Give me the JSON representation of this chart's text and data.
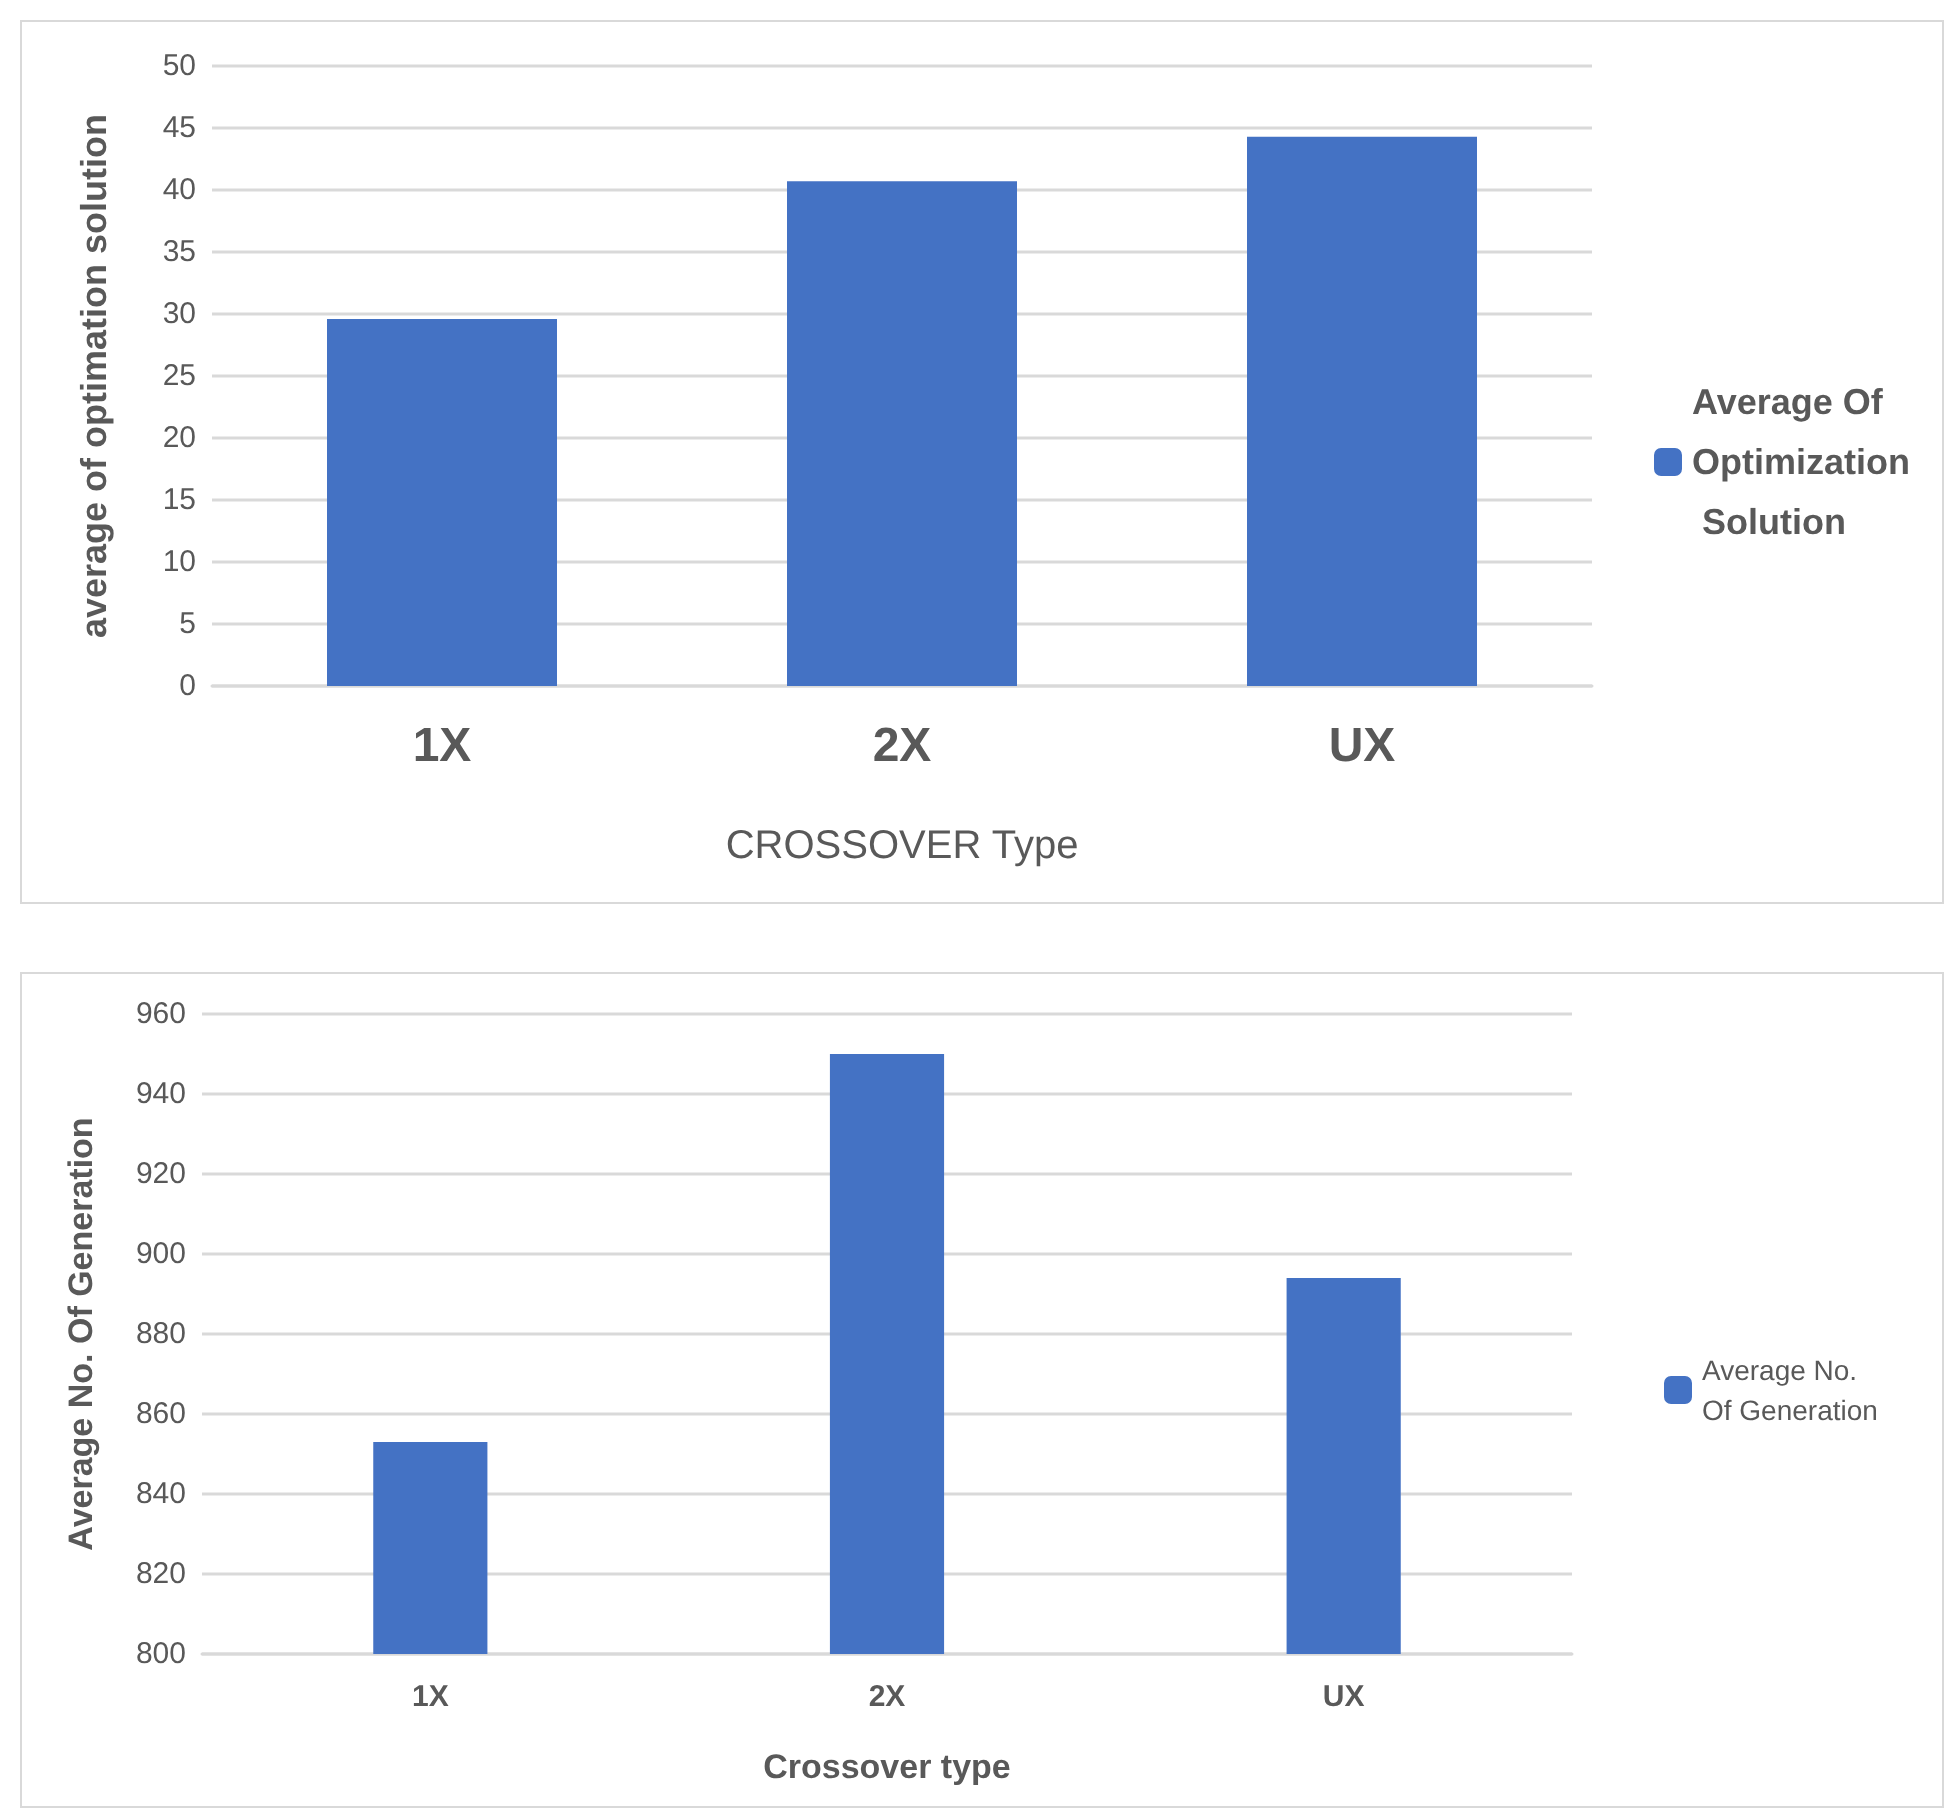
{
  "chart_data": [
    {
      "type": "bar",
      "xlabel": "CROSSOVER Type",
      "ylabel": "average of optimation solution",
      "categories": [
        "1X",
        "2X",
        "UX"
      ],
      "series": [
        {
          "name": "Average Of Optimization Solution",
          "color": "#4472c4",
          "values": [
            29.6,
            40.7,
            44.3
          ]
        }
      ],
      "ylim": [
        0,
        50
      ],
      "yticks": [
        0,
        5,
        10,
        15,
        20,
        25,
        30,
        35,
        40,
        45,
        50
      ],
      "grid": "y",
      "legend": "right"
    },
    {
      "type": "bar",
      "xlabel": "Crossover type",
      "ylabel": "Average No. Of Generation",
      "categories": [
        "1X",
        "2X",
        "UX"
      ],
      "series": [
        {
          "name": "Average No. Of Generation",
          "color": "#4472c4",
          "values": [
            853,
            950,
            894
          ]
        }
      ],
      "ylim": [
        800,
        960
      ],
      "yticks": [
        800,
        820,
        840,
        860,
        880,
        900,
        920,
        940,
        960
      ],
      "grid": "y",
      "legend": "right"
    }
  ]
}
